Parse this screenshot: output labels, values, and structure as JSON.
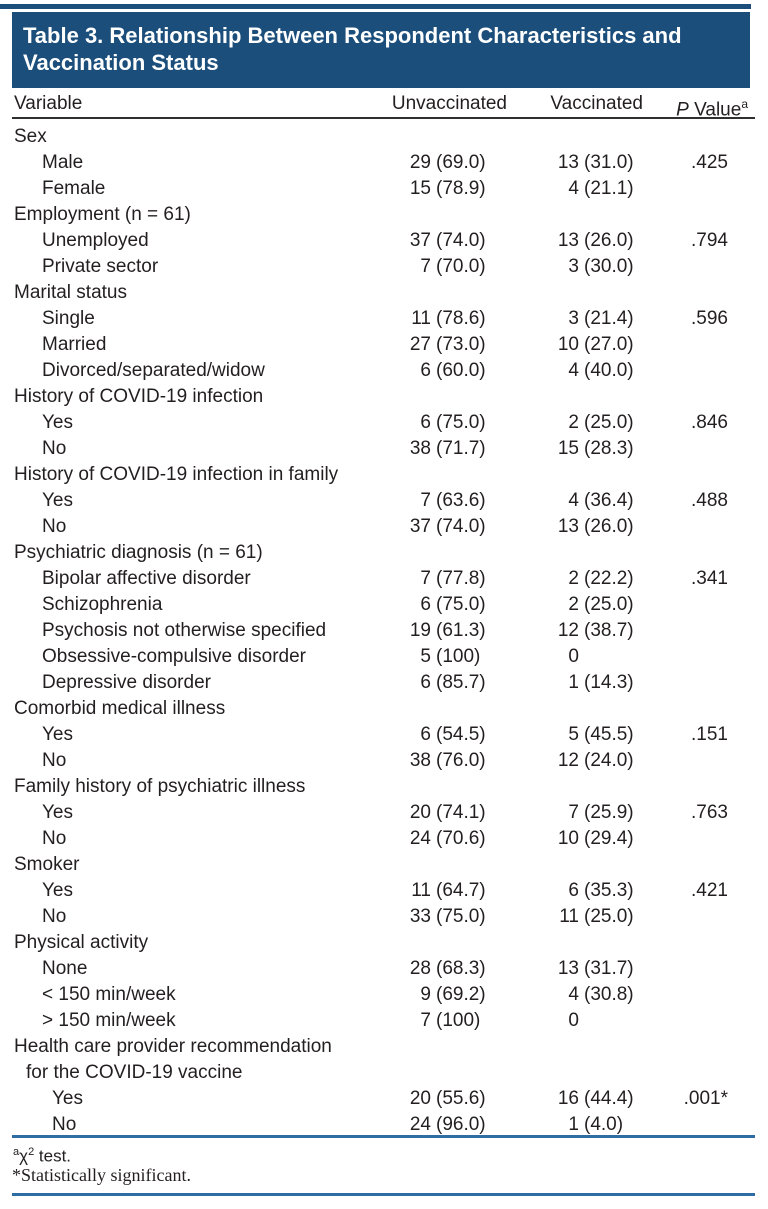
{
  "banner": {
    "title": "Table 3. Relationship Between Respondent Characteristics and Vaccination Status"
  },
  "header": {
    "variable": "Variable",
    "unvaccinated": "Unvaccinated",
    "vaccinated": "Vaccinated",
    "p_italic": "P",
    "p_rest": " Value",
    "p_sup": "a"
  },
  "rows": [
    {
      "label": "Sex",
      "indent": 0,
      "un": "",
      "up": "",
      "vn": "",
      "vp": "",
      "p": ""
    },
    {
      "label": "Male",
      "indent": 1,
      "un": "29",
      "up": "(69.0)",
      "vn": "13",
      "vp": "(31.0)",
      "p": ".425"
    },
    {
      "label": "Female",
      "indent": 1,
      "un": "15",
      "up": "(78.9)",
      "vn": "4",
      "vp": "(21.1)",
      "p": ""
    },
    {
      "label": "Employment (n = 61)",
      "indent": 0,
      "un": "",
      "up": "",
      "vn": "",
      "vp": "",
      "p": ""
    },
    {
      "label": "Unemployed",
      "indent": 1,
      "un": "37",
      "up": "(74.0)",
      "vn": "13",
      "vp": "(26.0)",
      "p": ".794"
    },
    {
      "label": "Private sector",
      "indent": 1,
      "un": "7",
      "up": "(70.0)",
      "vn": "3",
      "vp": "(30.0)",
      "p": ""
    },
    {
      "label": "Marital status",
      "indent": 0,
      "un": "",
      "up": "",
      "vn": "",
      "vp": "",
      "p": ""
    },
    {
      "label": "Single",
      "indent": 1,
      "un": "11",
      "up": "(78.6)",
      "vn": "3",
      "vp": "(21.4)",
      "p": ".596"
    },
    {
      "label": "Married",
      "indent": 1,
      "un": "27",
      "up": "(73.0)",
      "vn": "10",
      "vp": "(27.0)",
      "p": ""
    },
    {
      "label": "Divorced/separated/widow",
      "indent": 1,
      "un": "6",
      "up": "(60.0)",
      "vn": "4",
      "vp": "(40.0)",
      "p": ""
    },
    {
      "label": "History of COVID-19 infection",
      "indent": 0,
      "un": "",
      "up": "",
      "vn": "",
      "vp": "",
      "p": ""
    },
    {
      "label": "Yes",
      "indent": 1,
      "un": "6",
      "up": "(75.0)",
      "vn": "2",
      "vp": "(25.0)",
      "p": ".846"
    },
    {
      "label": "No",
      "indent": 1,
      "un": "38",
      "up": "(71.7)",
      "vn": "15",
      "vp": "(28.3)",
      "p": ""
    },
    {
      "label": "History of COVID-19 infection in family",
      "indent": 0,
      "un": "",
      "up": "",
      "vn": "",
      "vp": "",
      "p": ""
    },
    {
      "label": "Yes",
      "indent": 1,
      "un": "7",
      "up": "(63.6)",
      "vn": "4",
      "vp": "(36.4)",
      "p": ".488"
    },
    {
      "label": "No",
      "indent": 1,
      "un": "37",
      "up": "(74.0)",
      "vn": "13",
      "vp": "(26.0)",
      "p": ""
    },
    {
      "label": "Psychiatric diagnosis (n = 61)",
      "indent": 0,
      "un": "",
      "up": "",
      "vn": "",
      "vp": "",
      "p": ""
    },
    {
      "label": "Bipolar affective disorder",
      "indent": 1,
      "un": "7",
      "up": "(77.8)",
      "vn": "2",
      "vp": "(22.2)",
      "p": ".341"
    },
    {
      "label": "Schizophrenia",
      "indent": 1,
      "un": "6",
      "up": "(75.0)",
      "vn": "2",
      "vp": "(25.0)",
      "p": ""
    },
    {
      "label": "Psychosis not otherwise specified",
      "indent": 1,
      "un": "19",
      "up": "(61.3)",
      "vn": "12",
      "vp": "(38.7)",
      "p": ""
    },
    {
      "label": "Obsessive-compulsive disorder",
      "indent": 1,
      "un": "5",
      "up": "(100)",
      "vn": "0",
      "vp": "",
      "p": ""
    },
    {
      "label": "Depressive disorder",
      "indent": 1,
      "un": "6",
      "up": "(85.7)",
      "vn": "1",
      "vp": "(14.3)",
      "p": ""
    },
    {
      "label": "Comorbid medical illness",
      "indent": 0,
      "un": "",
      "up": "",
      "vn": "",
      "vp": "",
      "p": ""
    },
    {
      "label": "Yes",
      "indent": 1,
      "un": "6",
      "up": "(54.5)",
      "vn": "5",
      "vp": "(45.5)",
      "p": ".151"
    },
    {
      "label": "No",
      "indent": 1,
      "un": "38",
      "up": "(76.0)",
      "vn": "12",
      "vp": "(24.0)",
      "p": ""
    },
    {
      "label": "Family history of psychiatric illness",
      "indent": 0,
      "un": "",
      "up": "",
      "vn": "",
      "vp": "",
      "p": ""
    },
    {
      "label": "Yes",
      "indent": 1,
      "un": "20",
      "up": "(74.1)",
      "vn": "7",
      "vp": "(25.9)",
      "p": ".763"
    },
    {
      "label": "No",
      "indent": 1,
      "un": "24",
      "up": "(70.6)",
      "vn": "10",
      "vp": "(29.4)",
      "p": ""
    },
    {
      "label": "Smoker",
      "indent": 0,
      "un": "",
      "up": "",
      "vn": "",
      "vp": "",
      "p": ""
    },
    {
      "label": "Yes",
      "indent": 1,
      "un": "11",
      "up": "(64.7)",
      "vn": "6",
      "vp": "(35.3)",
      "p": ".421"
    },
    {
      "label": "No",
      "indent": 1,
      "un": "33",
      "up": "(75.0)",
      "vn": "11",
      "vp": "(25.0)",
      "p": ""
    },
    {
      "label": "Physical activity",
      "indent": 0,
      "un": "",
      "up": "",
      "vn": "",
      "vp": "",
      "p": ""
    },
    {
      "label": "None",
      "indent": 1,
      "un": "28",
      "up": "(68.3)",
      "vn": "13",
      "vp": "(31.7)",
      "p": ""
    },
    {
      "label": "< 150 min/week",
      "indent": 1,
      "un": "9",
      "up": "(69.2)",
      "vn": "4",
      "vp": "(30.8)",
      "p": ""
    },
    {
      "label": "> 150 min/week",
      "indent": 1,
      "un": "7",
      "up": "(100)",
      "vn": "0",
      "vp": "",
      "p": ""
    },
    {
      "label": "Health care provider recommendation",
      "indent": 0,
      "un": "",
      "up": "",
      "vn": "",
      "vp": "",
      "p": ""
    },
    {
      "label": "for the COVID-19 vaccine",
      "indent": 2,
      "un": "",
      "up": "",
      "vn": "",
      "vp": "",
      "p": ""
    },
    {
      "label": "Yes",
      "indent": 3,
      "un": "20",
      "up": "(55.6)",
      "vn": "16",
      "vp": "(44.4)",
      "p": ".001*"
    },
    {
      "label": "No",
      "indent": 3,
      "un": "24",
      "up": "(96.0)",
      "vn": "1",
      "vp": "(4.0)",
      "p": ""
    }
  ],
  "footnotes": {
    "fn1_sup": "a",
    "fn1_chi": "χ",
    "fn1_exp": "2",
    "fn1_rest": " test.",
    "fn2": "*Statistically significant."
  },
  "colors": {
    "banner": "#1b4e7b",
    "rule_blue": "#2e6da4",
    "header_rule": "#2f2f2f",
    "text": "#231f20"
  }
}
